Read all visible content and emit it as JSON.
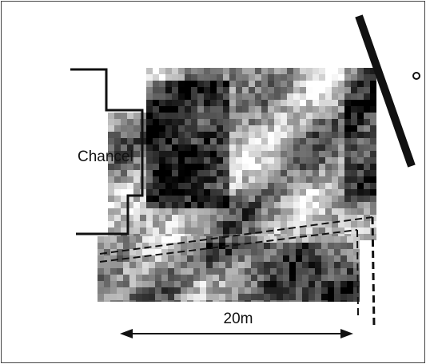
{
  "labels": {
    "chancel": "Chancel",
    "scale": "20m"
  }
}
